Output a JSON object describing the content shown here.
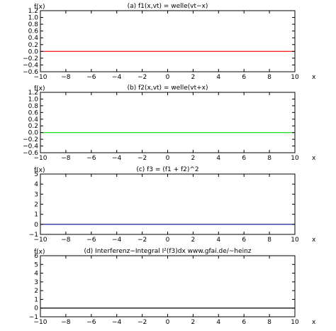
{
  "chart_data": [
    {
      "type": "line",
      "title": "(a) f1(x,vt) = welle(vt−x)",
      "ylabel": "f(x)",
      "xlabel": "x",
      "xlim": [
        -10,
        10
      ],
      "ylim": [
        -0.6,
        1.2
      ],
      "xticks": [
        -10,
        -8,
        -6,
        -4,
        -2,
        0,
        2,
        4,
        6,
        8,
        10
      ],
      "xtick_labels": [
        "−10",
        "−8",
        "−6",
        "−4",
        "−2",
        "0",
        "2",
        "4",
        "6",
        "8",
        "10"
      ],
      "yticks": [
        -0.6,
        -0.4,
        -0.2,
        0.0,
        0.2,
        0.4,
        0.6,
        0.8,
        1.0,
        1.2
      ],
      "ytick_labels": [
        "−0.6",
        "−0.4",
        "−0.2",
        "0.0",
        "0.2",
        "0.4",
        "0.6",
        "0.8",
        "1.0",
        "1.2"
      ],
      "grid": false,
      "series": [
        {
          "color": "#ff0000",
          "x": [
            -10,
            10
          ],
          "y": [
            0,
            0
          ]
        }
      ]
    },
    {
      "type": "line",
      "title": "(b) f2(x,vt) = welle(vt+x)",
      "ylabel": "f(x)",
      "xlabel": "x",
      "xlim": [
        -10,
        10
      ],
      "ylim": [
        -0.6,
        1.2
      ],
      "xticks": [
        -10,
        -8,
        -6,
        -4,
        -2,
        0,
        2,
        4,
        6,
        8,
        10
      ],
      "xtick_labels": [
        "−10",
        "−8",
        "−6",
        "−4",
        "−2",
        "0",
        "2",
        "4",
        "6",
        "8",
        "10"
      ],
      "yticks": [
        -0.6,
        -0.4,
        -0.2,
        0.0,
        0.2,
        0.4,
        0.6,
        0.8,
        1.0,
        1.2
      ],
      "ytick_labels": [
        "−0.6",
        "−0.4",
        "−0.2",
        "0.0",
        "0.2",
        "0.4",
        "0.6",
        "0.8",
        "1.0",
        "1.2"
      ],
      "grid": false,
      "series": [
        {
          "color": "#00dd00",
          "x": [
            -10,
            10
          ],
          "y": [
            0,
            0
          ]
        }
      ]
    },
    {
      "type": "line",
      "title": "(c) f3 = (f1 + f2)^2",
      "ylabel": "f(x)",
      "xlabel": "x",
      "xlim": [
        -10,
        10
      ],
      "ylim": [
        -1,
        5
      ],
      "xticks": [
        -10,
        -8,
        -6,
        -4,
        -2,
        0,
        2,
        4,
        6,
        8,
        10
      ],
      "xtick_labels": [
        "−10",
        "−8",
        "−6",
        "−4",
        "−2",
        "0",
        "2",
        "4",
        "6",
        "8",
        "10"
      ],
      "yticks": [
        -1,
        0,
        1,
        2,
        3,
        4,
        5
      ],
      "ytick_labels": [
        "−1",
        "0",
        "1",
        "2",
        "3",
        "4",
        "5"
      ],
      "grid": false,
      "series": [
        {
          "color": "#00008b",
          "x": [
            -10,
            10
          ],
          "y": [
            0,
            0
          ]
        }
      ]
    },
    {
      "type": "line",
      "title": "(d) Interferenz−Integral I²(f3)dx   www.gfai.de/~heinz",
      "ylabel": "f(x)",
      "xlabel": "x",
      "xlim": [
        -10,
        10
      ],
      "ylim": [
        -1,
        6
      ],
      "xticks": [
        -10,
        -8,
        -6,
        -4,
        -2,
        0,
        2,
        4,
        6,
        8,
        10
      ],
      "xtick_labels": [
        "−10",
        "−8",
        "−6",
        "−4",
        "−2",
        "0",
        "2",
        "4",
        "6",
        "8",
        "10"
      ],
      "yticks": [
        -1,
        0,
        1,
        2,
        3,
        4,
        5,
        6
      ],
      "ytick_labels": [
        "−1",
        "0",
        "1",
        "2",
        "3",
        "4",
        "5",
        "6"
      ],
      "grid": false,
      "series": [
        {
          "color": "#000000",
          "x": [
            -10,
            10
          ],
          "y": [
            0,
            0
          ]
        }
      ]
    }
  ]
}
